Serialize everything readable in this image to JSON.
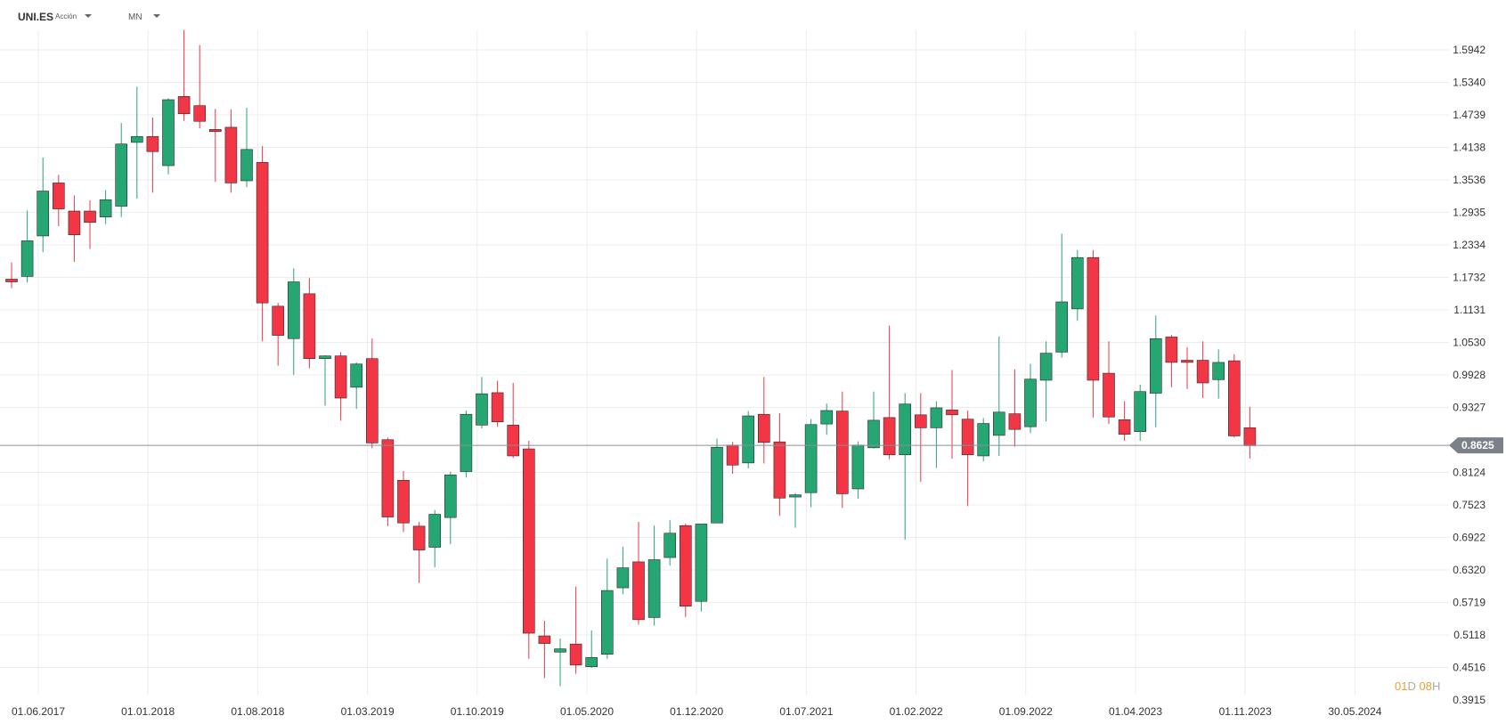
{
  "header": {
    "symbol": "UNI.ES",
    "instrument_type": "Acción",
    "timeframe": "MN"
  },
  "colors": {
    "up": "#26a672",
    "down": "#f23645",
    "grid": "#ececec",
    "price_line": "#8a9199",
    "price_label_bg": "#7b8188"
  },
  "countdown": {
    "days": "01",
    "day_unit": "D",
    "hours": "08",
    "hour_unit": "H"
  },
  "chart_data": {
    "type": "candlestick",
    "title": "",
    "xlabel": "",
    "ylabel": "",
    "ylim": [
      0.3915,
      1.6243
    ],
    "yticks": [
      "1.5942",
      "1.5340",
      "1.4739",
      "1.4138",
      "1.3536",
      "1.2935",
      "1.2334",
      "1.1732",
      "1.1131",
      "1.0530",
      "0.9928",
      "0.9327",
      "0.8124",
      "0.7523",
      "0.6922",
      "0.6320",
      "0.5719",
      "0.5118",
      "0.4516",
      "0.3915"
    ],
    "xticks": [
      "01.06.2017",
      "01.01.2018",
      "01.08.2018",
      "01.03.2019",
      "01.10.2019",
      "01.05.2020",
      "01.12.2020",
      "01.07.2021",
      "01.02.2022",
      "01.09.2022",
      "01.04.2023",
      "01.11.2023",
      "30.05.2024"
    ],
    "current_price": "0.8625",
    "grid": true,
    "candles": [
      {
        "date": "2017-06",
        "open": 1.17,
        "high": 1.201,
        "low": 1.153,
        "close": 1.165
      },
      {
        "date": "2017-07",
        "open": 1.175,
        "high": 1.297,
        "low": 1.164,
        "close": 1.241
      },
      {
        "date": "2017-08",
        "open": 1.25,
        "high": 1.395,
        "low": 1.22,
        "close": 1.333
      },
      {
        "date": "2017-09",
        "open": 1.348,
        "high": 1.363,
        "low": 1.268,
        "close": 1.3
      },
      {
        "date": "2017-10",
        "open": 1.296,
        "high": 1.325,
        "low": 1.202,
        "close": 1.252
      },
      {
        "date": "2017-11",
        "open": 1.296,
        "high": 1.316,
        "low": 1.226,
        "close": 1.275
      },
      {
        "date": "2017-12",
        "open": 1.285,
        "high": 1.335,
        "low": 1.272,
        "close": 1.317
      },
      {
        "date": "2018-01",
        "open": 1.305,
        "high": 1.459,
        "low": 1.285,
        "close": 1.42
      },
      {
        "date": "2018-02",
        "open": 1.423,
        "high": 1.526,
        "low": 1.319,
        "close": 1.434
      },
      {
        "date": "2018-03",
        "open": 1.434,
        "high": 1.469,
        "low": 1.33,
        "close": 1.406
      },
      {
        "date": "2018-04",
        "open": 1.38,
        "high": 1.505,
        "low": 1.364,
        "close": 1.502
      },
      {
        "date": "2018-05",
        "open": 1.508,
        "high": 1.631,
        "low": 1.463,
        "close": 1.476
      },
      {
        "date": "2018-06",
        "open": 1.491,
        "high": 1.603,
        "low": 1.449,
        "close": 1.462
      },
      {
        "date": "2018-07",
        "open": 1.447,
        "high": 1.485,
        "low": 1.35,
        "close": 1.443
      },
      {
        "date": "2018-08",
        "open": 1.451,
        "high": 1.484,
        "low": 1.33,
        "close": 1.348
      },
      {
        "date": "2018-09",
        "open": 1.352,
        "high": 1.487,
        "low": 1.34,
        "close": 1.41
      },
      {
        "date": "2018-10",
        "open": 1.386,
        "high": 1.416,
        "low": 1.055,
        "close": 1.126
      },
      {
        "date": "2018-11",
        "open": 1.12,
        "high": 1.126,
        "low": 1.01,
        "close": 1.066
      },
      {
        "date": "2018-12",
        "open": 1.06,
        "high": 1.19,
        "low": 0.993,
        "close": 1.165
      },
      {
        "date": "2019-01",
        "open": 1.143,
        "high": 1.172,
        "low": 1.005,
        "close": 1.023
      },
      {
        "date": "2019-02",
        "open": 1.023,
        "high": 1.029,
        "low": 0.936,
        "close": 1.028
      },
      {
        "date": "2019-03",
        "open": 1.028,
        "high": 1.035,
        "low": 0.908,
        "close": 0.95
      },
      {
        "date": "2019-04",
        "open": 0.97,
        "high": 1.016,
        "low": 0.93,
        "close": 1.013
      },
      {
        "date": "2019-05",
        "open": 1.023,
        "high": 1.06,
        "low": 0.857,
        "close": 0.867
      },
      {
        "date": "2019-06",
        "open": 0.873,
        "high": 0.877,
        "low": 0.713,
        "close": 0.73
      },
      {
        "date": "2019-07",
        "open": 0.798,
        "high": 0.815,
        "low": 0.702,
        "close": 0.719
      },
      {
        "date": "2019-08",
        "open": 0.713,
        "high": 0.721,
        "low": 0.608,
        "close": 0.669
      },
      {
        "date": "2019-09",
        "open": 0.674,
        "high": 0.743,
        "low": 0.637,
        "close": 0.735
      },
      {
        "date": "2019-10",
        "open": 0.729,
        "high": 0.814,
        "low": 0.68,
        "close": 0.808
      },
      {
        "date": "2019-11",
        "open": 0.814,
        "high": 0.927,
        "low": 0.803,
        "close": 0.92
      },
      {
        "date": "2019-12",
        "open": 0.9,
        "high": 0.989,
        "low": 0.894,
        "close": 0.958
      },
      {
        "date": "2020-01",
        "open": 0.96,
        "high": 0.982,
        "low": 0.897,
        "close": 0.906
      },
      {
        "date": "2020-02",
        "open": 0.9,
        "high": 0.978,
        "low": 0.839,
        "close": 0.843
      },
      {
        "date": "2020-03",
        "open": 0.856,
        "high": 0.871,
        "low": 0.468,
        "close": 0.515
      },
      {
        "date": "2020-04",
        "open": 0.51,
        "high": 0.538,
        "low": 0.432,
        "close": 0.496
      },
      {
        "date": "2020-05",
        "open": 0.48,
        "high": 0.505,
        "low": 0.417,
        "close": 0.486
      },
      {
        "date": "2020-06",
        "open": 0.495,
        "high": 0.601,
        "low": 0.44,
        "close": 0.456
      },
      {
        "date": "2020-07",
        "open": 0.453,
        "high": 0.52,
        "low": 0.451,
        "close": 0.47
      },
      {
        "date": "2020-08",
        "open": 0.476,
        "high": 0.653,
        "low": 0.468,
        "close": 0.594
      },
      {
        "date": "2020-09",
        "open": 0.599,
        "high": 0.675,
        "low": 0.587,
        "close": 0.636
      },
      {
        "date": "2020-10",
        "open": 0.647,
        "high": 0.721,
        "low": 0.531,
        "close": 0.54
      },
      {
        "date": "2020-11",
        "open": 0.544,
        "high": 0.714,
        "low": 0.529,
        "close": 0.651
      },
      {
        "date": "2020-12",
        "open": 0.655,
        "high": 0.724,
        "low": 0.64,
        "close": 0.7
      },
      {
        "date": "2021-01",
        "open": 0.714,
        "high": 0.718,
        "low": 0.545,
        "close": 0.565
      },
      {
        "date": "2021-02",
        "open": 0.574,
        "high": 0.717,
        "low": 0.555,
        "close": 0.717
      },
      {
        "date": "2021-03",
        "open": 0.719,
        "high": 0.875,
        "low": 0.719,
        "close": 0.859
      },
      {
        "date": "2021-04",
        "open": 0.863,
        "high": 0.869,
        "low": 0.81,
        "close": 0.826
      },
      {
        "date": "2021-05",
        "open": 0.83,
        "high": 0.926,
        "low": 0.82,
        "close": 0.917
      },
      {
        "date": "2021-06",
        "open": 0.92,
        "high": 0.989,
        "low": 0.829,
        "close": 0.868
      },
      {
        "date": "2021-07",
        "open": 0.869,
        "high": 0.922,
        "low": 0.732,
        "close": 0.765
      },
      {
        "date": "2021-08",
        "open": 0.767,
        "high": 0.774,
        "low": 0.71,
        "close": 0.771
      },
      {
        "date": "2021-09",
        "open": 0.775,
        "high": 0.911,
        "low": 0.748,
        "close": 0.901
      },
      {
        "date": "2021-10",
        "open": 0.902,
        "high": 0.94,
        "low": 0.882,
        "close": 0.927
      },
      {
        "date": "2021-11",
        "open": 0.926,
        "high": 0.962,
        "low": 0.747,
        "close": 0.773
      },
      {
        "date": "2021-12",
        "open": 0.782,
        "high": 0.87,
        "low": 0.764,
        "close": 0.863
      },
      {
        "date": "2022-01",
        "open": 0.858,
        "high": 0.962,
        "low": 0.857,
        "close": 0.909
      },
      {
        "date": "2022-02",
        "open": 0.914,
        "high": 1.084,
        "low": 0.837,
        "close": 0.845
      },
      {
        "date": "2022-03",
        "open": 0.845,
        "high": 0.959,
        "low": 0.688,
        "close": 0.939
      },
      {
        "date": "2022-04",
        "open": 0.919,
        "high": 0.959,
        "low": 0.795,
        "close": 0.895
      },
      {
        "date": "2022-05",
        "open": 0.895,
        "high": 0.944,
        "low": 0.821,
        "close": 0.932
      },
      {
        "date": "2022-06",
        "open": 0.928,
        "high": 1.002,
        "low": 0.838,
        "close": 0.919
      },
      {
        "date": "2022-07",
        "open": 0.911,
        "high": 0.927,
        "low": 0.75,
        "close": 0.845
      },
      {
        "date": "2022-08",
        "open": 0.843,
        "high": 0.913,
        "low": 0.833,
        "close": 0.903
      },
      {
        "date": "2022-09",
        "open": 0.881,
        "high": 1.064,
        "low": 0.843,
        "close": 0.924
      },
      {
        "date": "2022-10",
        "open": 0.921,
        "high": 1.003,
        "low": 0.86,
        "close": 0.892
      },
      {
        "date": "2022-11",
        "open": 0.897,
        "high": 1.013,
        "low": 0.885,
        "close": 0.985
      },
      {
        "date": "2022-12",
        "open": 0.983,
        "high": 1.055,
        "low": 0.907,
        "close": 1.033
      },
      {
        "date": "2023-01",
        "open": 1.035,
        "high": 1.254,
        "low": 1.025,
        "close": 1.128
      },
      {
        "date": "2023-02",
        "open": 1.115,
        "high": 1.224,
        "low": 1.093,
        "close": 1.21
      },
      {
        "date": "2023-03",
        "open": 1.21,
        "high": 1.224,
        "low": 0.914,
        "close": 0.983
      },
      {
        "date": "2023-04",
        "open": 0.996,
        "high": 1.055,
        "low": 0.902,
        "close": 0.915
      },
      {
        "date": "2023-05",
        "open": 0.91,
        "high": 0.944,
        "low": 0.871,
        "close": 0.883
      },
      {
        "date": "2023-06",
        "open": 0.888,
        "high": 0.975,
        "low": 0.871,
        "close": 0.962
      },
      {
        "date": "2023-07",
        "open": 0.959,
        "high": 1.103,
        "low": 0.896,
        "close": 1.06
      },
      {
        "date": "2023-08",
        "open": 1.063,
        "high": 1.067,
        "low": 0.97,
        "close": 1.016
      },
      {
        "date": "2023-09",
        "open": 1.02,
        "high": 1.044,
        "low": 0.967,
        "close": 1.016
      },
      {
        "date": "2023-10",
        "open": 1.02,
        "high": 1.055,
        "low": 0.95,
        "close": 0.978
      },
      {
        "date": "2023-11",
        "open": 0.984,
        "high": 1.04,
        "low": 0.949,
        "close": 1.016
      },
      {
        "date": "2023-12",
        "open": 1.019,
        "high": 1.031,
        "low": 0.877,
        "close": 0.88
      },
      {
        "date": "2024-01",
        "open": 0.895,
        "high": 0.934,
        "low": 0.838,
        "close": 0.862
      }
    ]
  }
}
